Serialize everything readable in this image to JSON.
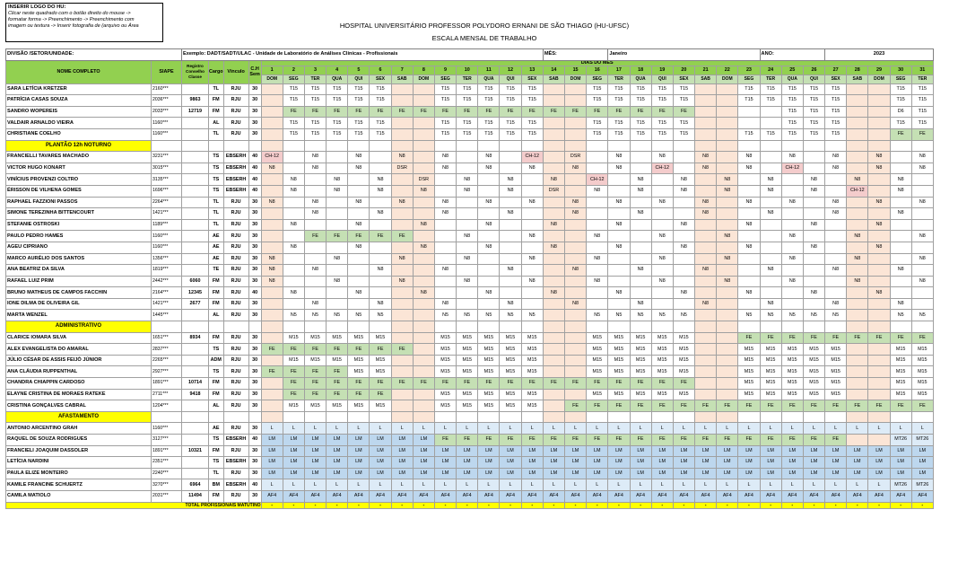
{
  "logo": {
    "title": "INSERIR LOGO DO HU:",
    "lines": [
      "Clicar neste quadrado com o botão direito do mouse ->",
      "formatar forma -> Preenchimento -> Preenchimento com",
      "imagem ou textura -> Inserir fotografia de (arquivo ou Área"
    ]
  },
  "header": {
    "hospital": "HOSPITAL UNIVERSITÁRIO PROFESSOR POLYDORO ERNANI DE SÃO THIAGO (HU-UFSC)",
    "subtitle": "ESCALA MENSAL DE TRABALHO"
  },
  "info": {
    "div_label": "DIVISÃO /SETOR/UNIDADE:",
    "exemplo": "Exemplo: DADT/SADT/ULAC - Unidade de Laboratório de Análises Clínicas - Profissionais",
    "mes_label": "MÊS:",
    "mes": "Janeiro",
    "ano_label": "ANO:",
    "ano": "2023"
  },
  "columns": {
    "nome": "NOME COMPLETO",
    "siape": "SIAPE",
    "registro": "Registro Conselho Classe",
    "cargo": "Cargo",
    "vinculo": "Vínculo",
    "ch": "C.H Sem",
    "dias_title": "DIAS DO MES"
  },
  "days": [
    "1",
    "2",
    "3",
    "4",
    "5",
    "6",
    "7",
    "8",
    "9",
    "10",
    "11",
    "12",
    "13",
    "14",
    "15",
    "16",
    "17",
    "18",
    "19",
    "20",
    "21",
    "22",
    "23",
    "24",
    "25",
    "26",
    "27",
    "28",
    "29",
    "30",
    "31"
  ],
  "weekdays": [
    "DOM",
    "SEG",
    "TER",
    "QUA",
    "QUI",
    "SEX",
    "SAB",
    "DOM",
    "SEG",
    "TER",
    "QUA",
    "QUI",
    "SEX",
    "SAB",
    "DOM",
    "SEG",
    "TER",
    "QUA",
    "QUI",
    "SEX",
    "SAB",
    "DOM",
    "SEG",
    "TER",
    "QUA",
    "QUI",
    "SEX",
    "SAB",
    "DOM",
    "SEG",
    "TER"
  ],
  "weekend_days": [
    0,
    6,
    7,
    13,
    14,
    20,
    21,
    27,
    28
  ],
  "rows": [
    {
      "nome": "SARA LETÍCIA KRETZER",
      "siape": "2160***",
      "reg": "",
      "cargo": "TL",
      "vinc": "RJU",
      "ch": "30",
      "s": {
        "2": "T15",
        "3": "T15",
        "4": "T15",
        "5": "T15",
        "6": "T15",
        "9": "T15",
        "10": "T15",
        "11": "T15",
        "12": "T15",
        "13": "T15",
        "16": "T15",
        "17": "T15",
        "18": "T15",
        "19": "T15",
        "20": "T15",
        "23": "T15",
        "24": "T15",
        "25": "T15",
        "26": "T15",
        "27": "T15",
        "30": "T15",
        "31": "T15"
      }
    },
    {
      "nome": "PATRÍCIA CASAS SOUZA",
      "siape": "2036***",
      "reg": "9863",
      "cargo": "FM",
      "vinc": "RJU",
      "ch": "30",
      "s": {
        "2": "T15",
        "3": "T15",
        "4": "T15",
        "5": "T15",
        "6": "T15",
        "9": "T15",
        "10": "T15",
        "11": "T15",
        "12": "T15",
        "13": "T15",
        "16": "T15",
        "17": "T15",
        "18": "T15",
        "19": "T15",
        "20": "T15",
        "23": "T15",
        "24": "T15",
        "25": "T15",
        "26": "T15",
        "27": "T15",
        "30": "T15",
        "31": "T15"
      }
    },
    {
      "nome": "SANDRO WOPEREIS",
      "siape": "2033***",
      "reg": "12719",
      "cargo": "FM",
      "vinc": "RJU",
      "ch": "30",
      "s": {
        "2": "FE",
        "3": "FE",
        "4": "FE",
        "5": "FE",
        "6": "FE",
        "7": "FE",
        "8": "FE",
        "9": "FE",
        "10": "FE",
        "11": "FE",
        "12": "FE",
        "13": "FE",
        "14": "FE",
        "15": "FE",
        "16": "FE",
        "17": "FE",
        "18": "FE",
        "19": "FE",
        "20": "FE",
        "25": "T15",
        "26": "T15",
        "27": "T15",
        "30": "D6",
        "31": "T15"
      }
    },
    {
      "nome": "VALDAIR ARNALDO VIEIRA",
      "siape": "1160***",
      "reg": "",
      "cargo": "AL",
      "vinc": "RJU",
      "ch": "30",
      "s": {
        "2": "T15",
        "3": "T15",
        "4": "T15",
        "5": "T15",
        "6": "T15",
        "9": "T15",
        "10": "T15",
        "11": "T15",
        "12": "T15",
        "13": "T15",
        "16": "T15",
        "17": "T15",
        "18": "T15",
        "19": "T15",
        "20": "T15",
        "25": "T15",
        "26": "T15",
        "27": "T15",
        "30": "T15",
        "31": "T15"
      }
    },
    {
      "nome": "CHRISTIANE COELHO",
      "siape": "1160***",
      "reg": "",
      "cargo": "TL",
      "vinc": "RJU",
      "ch": "30",
      "s": {
        "2": "T15",
        "3": "T15",
        "4": "T15",
        "5": "T15",
        "6": "T15",
        "9": "T15",
        "10": "T15",
        "11": "T15",
        "12": "T15",
        "13": "T15",
        "16": "T15",
        "17": "T15",
        "18": "T15",
        "19": "T15",
        "20": "T15",
        "23": "T15",
        "24": "T15",
        "25": "T15",
        "26": "T15",
        "27": "T15",
        "30": "FE",
        "31": "FE"
      }
    },
    {
      "section": "PLANTÃO 12h NOTURNO"
    },
    {
      "nome": "FRANCIELLI TAVARES MACHADO",
      "siape": "3231***",
      "reg": "",
      "cargo": "TS",
      "vinc": "EBSERH",
      "ch": "40",
      "s": {
        "1": "CH-12",
        "3": "N8",
        "5": "N8",
        "7": "N8",
        "9": "N8",
        "11": "N8",
        "13": "CH-12",
        "15": "DSR",
        "17": "N8",
        "19": "N8",
        "21": "N8",
        "23": "N8",
        "25": "N8",
        "27": "N8",
        "29": "N8",
        "31": "N8"
      }
    },
    {
      "nome": "VICTOR HUGO KONART",
      "siape": "3015***",
      "reg": "",
      "cargo": "TS",
      "vinc": "EBSERH",
      "ch": "40",
      "s": {
        "1": "N8",
        "3": "N8",
        "5": "N8",
        "7": "DSR",
        "9": "N8",
        "11": "N8",
        "13": "N8",
        "15": "N8",
        "17": "N8",
        "19": "CH-12",
        "21": "N8",
        "23": "N8",
        "25": "CH-12",
        "27": "N8",
        "29": "N8",
        "31": "N8"
      }
    },
    {
      "nome": "VINÍCIUS PROVENZI COLTRO",
      "siape": "3135***",
      "reg": "",
      "cargo": "TS",
      "vinc": "EBSERH",
      "ch": "40",
      "s": {
        "2": "N8",
        "4": "N8",
        "6": "N8",
        "8": "DSR",
        "10": "N8",
        "12": "N8",
        "14": "N8",
        "16": "CH-12",
        "18": "N8",
        "20": "N8",
        "22": "N8",
        "24": "N8",
        "26": "N8",
        "28": "N8",
        "30": "N8"
      }
    },
    {
      "nome": "ÉRISSON DE VILHENA GOMES",
      "siape": "1696***",
      "reg": "",
      "cargo": "TS",
      "vinc": "EBSERH",
      "ch": "40",
      "s": {
        "2": "N8",
        "4": "N8",
        "6": "N8",
        "8": "N8",
        "10": "N8",
        "12": "N8",
        "14": "DSR",
        "16": "N8",
        "18": "N8",
        "20": "N8",
        "22": "N8",
        "24": "N8",
        "26": "N8",
        "28": "CH-12",
        "30": "N8"
      }
    },
    {
      "nome": "RAPHAEL FAZZIONI PASSOS",
      "siape": "2264***",
      "reg": "",
      "cargo": "TL",
      "vinc": "RJU",
      "ch": "30",
      "s": {
        "1": "N8",
        "3": "N8",
        "5": "N8",
        "7": "N8",
        "9": "N8",
        "11": "N8",
        "13": "N8",
        "15": "N8",
        "17": "N8",
        "19": "N8",
        "21": "N8",
        "23": "N8",
        "25": "N8",
        "27": "N8",
        "29": "N8",
        "31": "N8"
      }
    },
    {
      "nome": "SIMONE TEREZINHA BITTENCOURT",
      "siape": "1421***",
      "reg": "",
      "cargo": "TL",
      "vinc": "RJU",
      "ch": "30",
      "s": {
        "3": "N8",
        "6": "N8",
        "9": "N8",
        "12": "N8",
        "15": "N8",
        "18": "N8",
        "21": "N8",
        "24": "N8",
        "27": "N8",
        "30": "N8"
      }
    },
    {
      "nome": "STEFANIE OSTROSKI",
      "siape": "1189***",
      "reg": "",
      "cargo": "TL",
      "vinc": "RJU",
      "ch": "30",
      "s": {
        "2": "N8",
        "5": "N8",
        "8": "N8",
        "11": "N8",
        "14": "N8",
        "17": "N8",
        "20": "N8",
        "23": "N8",
        "26": "N8",
        "29": "N8"
      }
    },
    {
      "nome": "PAULO PEDRO HAMES",
      "siape": "1160***",
      "reg": "",
      "cargo": "AE",
      "vinc": "RJU",
      "ch": "30",
      "s": {
        "3": "FE",
        "4": "FE",
        "5": "FE",
        "6": "FE",
        "7": "FE",
        "10": "N8",
        "13": "N8",
        "16": "N8",
        "19": "N8",
        "22": "N8",
        "25": "N8",
        "28": "N8",
        "31": "N8"
      }
    },
    {
      "nome": "AGEU CIPRIANO",
      "siape": "1160***",
      "reg": "",
      "cargo": "AE",
      "vinc": "RJU",
      "ch": "30",
      "s": {
        "2": "N8",
        "5": "N8",
        "8": "N8",
        "11": "N8",
        "14": "N8",
        "17": "N8",
        "20": "N8",
        "23": "N8",
        "26": "N8",
        "29": "N8"
      }
    },
    {
      "nome": "MARCO AURÉLIO DOS SANTOS",
      "siape": "1356***",
      "reg": "",
      "cargo": "AE",
      "vinc": "RJU",
      "ch": "30",
      "s": {
        "1": "N8",
        "4": "N8",
        "7": "N8",
        "10": "N8",
        "13": "N8",
        "16": "N8",
        "19": "N8",
        "22": "N8",
        "25": "N8",
        "28": "N8",
        "31": "N8"
      }
    },
    {
      "nome": "ANA BEATRIZ DA SILVA",
      "siape": "1819***",
      "reg": "",
      "cargo": "TE",
      "vinc": "RJU",
      "ch": "30",
      "s": {
        "1": "N8",
        "3": "N8",
        "6": "N8",
        "9": "N8",
        "12": "N8",
        "15": "N8",
        "18": "N8",
        "21": "N8",
        "24": "N8",
        "27": "N8",
        "30": "N8"
      }
    },
    {
      "nome": "RAFAEL LUIZ PRIM",
      "siape": "2442***",
      "reg": "6060",
      "cargo": "FM",
      "vinc": "RJU",
      "ch": "30",
      "s": {
        "1": "N8",
        "4": "N8",
        "7": "N8",
        "10": "N8",
        "13": "N8",
        "16": "N8",
        "19": "N8",
        "22": "N8",
        "25": "N8",
        "28": "N8",
        "31": "N8"
      }
    },
    {
      "nome": "BRUNO MATHEUS DE CAMPOS FACCHIN",
      "siape": "2164***",
      "reg": "12345",
      "cargo": "FM",
      "vinc": "RJU",
      "ch": "40",
      "s": {
        "2": "N8",
        "5": "N8",
        "8": "N8",
        "11": "N8",
        "14": "N8",
        "17": "N8",
        "20": "N8",
        "23": "N8",
        "26": "N8",
        "29": "N8"
      }
    },
    {
      "nome": "IONE DILMA DE OLIVEIRA GIL",
      "siape": "1421***",
      "reg": "2677",
      "cargo": "FM",
      "vinc": "RJU",
      "ch": "30",
      "s": {
        "3": "N8",
        "6": "N8",
        "9": "N8",
        "12": "N8",
        "15": "N8",
        "18": "N8",
        "21": "N8",
        "24": "N8",
        "27": "N8",
        "30": "N8"
      }
    },
    {
      "nome": "MARTA WENZEL",
      "siape": "1445***",
      "reg": "",
      "cargo": "AL",
      "vinc": "RJU",
      "ch": "30",
      "s": {
        "2": "N5",
        "3": "N5",
        "4": "N5",
        "5": "N5",
        "6": "N5",
        "9": "N5",
        "10": "N5",
        "11": "N5",
        "12": "N5",
        "13": "N5",
        "16": "N5",
        "17": "N5",
        "18": "N5",
        "19": "N5",
        "20": "N5",
        "23": "N5",
        "24": "N5",
        "25": "N5",
        "26": "N5",
        "27": "N5",
        "30": "N5",
        "31": "N5"
      }
    },
    {
      "section": "ADMINISTRATIVO"
    },
    {
      "nome": "CLARICE IOMARA SILVA",
      "siape": "1651***",
      "reg": "8934",
      "cargo": "FM",
      "vinc": "RJU",
      "ch": "30",
      "s": {
        "2": "M15",
        "3": "M15",
        "4": "M15",
        "5": "M15",
        "6": "M15",
        "9": "M15",
        "10": "M15",
        "11": "M15",
        "12": "M15",
        "13": "M15",
        "16": "M15",
        "17": "M15",
        "18": "M15",
        "19": "M15",
        "20": "M15",
        "23": "FE",
        "24": "FE",
        "25": "FE",
        "26": "FE",
        "27": "FE",
        "28": "FE",
        "29": "FE",
        "30": "FE",
        "31": "FE"
      }
    },
    {
      "nome": "ALEX EVANGELISTA DO AMARAL",
      "siape": "2837***",
      "reg": "",
      "cargo": "TS",
      "vinc": "RJU",
      "ch": "30",
      "s": {
        "1": "FE",
        "2": "FE",
        "3": "FE",
        "4": "FE",
        "5": "FE",
        "6": "FE",
        "7": "FE",
        "9": "M15",
        "10": "M15",
        "11": "M15",
        "12": "M15",
        "13": "M15",
        "16": "M15",
        "17": "M15",
        "18": "M15",
        "19": "M15",
        "20": "M15",
        "23": "M15",
        "24": "M15",
        "25": "M15",
        "26": "M15",
        "27": "M15",
        "30": "M15",
        "31": "M15"
      }
    },
    {
      "nome": "JÚLIO CÉSAR DE ASSIS FEIJÓ JÚNIOR",
      "siape": "2265***",
      "reg": "",
      "cargo": "ADM",
      "vinc": "RJU",
      "ch": "30",
      "s": {
        "2": "M15",
        "3": "M15",
        "4": "M15",
        "5": "M15",
        "6": "M15",
        "9": "M15",
        "10": "M15",
        "11": "M15",
        "12": "M15",
        "13": "M15",
        "16": "M15",
        "17": "M15",
        "18": "M15",
        "19": "M15",
        "20": "M15",
        "23": "M15",
        "24": "M15",
        "25": "M15",
        "26": "M15",
        "27": "M15",
        "30": "M15",
        "31": "M15"
      }
    },
    {
      "nome": "ANA CLÁUDIA RUPPENTHAL",
      "siape": "2927***",
      "reg": "",
      "cargo": "TS",
      "vinc": "RJU",
      "ch": "30",
      "s": {
        "1": "FE",
        "2": "FE",
        "3": "FE",
        "4": "FE",
        "5": "M15",
        "6": "M15",
        "9": "M15",
        "10": "M15",
        "11": "M15",
        "12": "M15",
        "13": "M15",
        "16": "M15",
        "17": "M15",
        "18": "M15",
        "19": "M15",
        "20": "M15",
        "23": "M15",
        "24": "M15",
        "25": "M15",
        "26": "M15",
        "27": "M15",
        "30": "M15",
        "31": "M15"
      }
    },
    {
      "nome": "CHANDRA CHIAPPIN CARDOSO",
      "siape": "1891***",
      "reg": "10714",
      "cargo": "FM",
      "vinc": "RJU",
      "ch": "30",
      "s": {
        "2": "FE",
        "3": "FE",
        "4": "FE",
        "5": "FE",
        "6": "FE",
        "7": "FE",
        "8": "FE",
        "9": "FE",
        "10": "FE",
        "11": "FE",
        "12": "FE",
        "13": "FE",
        "14": "FE",
        "15": "FE",
        "16": "FE",
        "17": "FE",
        "18": "FE",
        "19": "FE",
        "20": "FE",
        "23": "M15",
        "24": "M15",
        "25": "M15",
        "26": "M15",
        "27": "M15",
        "30": "M15",
        "31": "M15"
      }
    },
    {
      "nome": "ELAYNE CRISTINA DE MORAES RATEKE",
      "siape": "2711***",
      "reg": "9418",
      "cargo": "FM",
      "vinc": "RJU",
      "ch": "30",
      "s": {
        "2": "FE",
        "3": "FE",
        "4": "FE",
        "5": "FE",
        "6": "FE",
        "9": "M15",
        "10": "M15",
        "11": "M15",
        "12": "M15",
        "13": "M15",
        "16": "M15",
        "17": "M15",
        "18": "M15",
        "19": "M15",
        "20": "M15",
        "23": "M15",
        "24": "M15",
        "25": "M15",
        "26": "M15",
        "27": "M15",
        "30": "M15",
        "31": "M15"
      }
    },
    {
      "nome": "CRISTINA GONÇALVES CABRAL",
      "siape": "1204***",
      "reg": "",
      "cargo": "AL",
      "vinc": "RJU",
      "ch": "30",
      "s": {
        "2": "M15",
        "3": "M15",
        "4": "M15",
        "5": "M15",
        "6": "M15",
        "9": "M15",
        "10": "M15",
        "11": "M15",
        "12": "M15",
        "13": "M15",
        "15": "FE",
        "16": "FE",
        "17": "FE",
        "18": "FE",
        "19": "FE",
        "20": "FE",
        "21": "FE",
        "22": "FE",
        "23": "FE",
        "24": "FE",
        "25": "FE",
        "26": "FE",
        "27": "FE",
        "28": "FE",
        "29": "FE",
        "30": "FE",
        "31": "FE"
      }
    },
    {
      "section": "AFASTAMENTO"
    },
    {
      "nome": "ANTONIO ARCENTINO GRAH",
      "siape": "1160***",
      "reg": "",
      "cargo": "AE",
      "vinc": "RJU",
      "ch": "30",
      "fill": "L"
    },
    {
      "nome": "RAQUEL DE SOUZA RODRIGUES",
      "siape": "3127***",
      "reg": "",
      "cargo": "TS",
      "vinc": "EBSERH",
      "ch": "40",
      "s": {
        "1": "LM",
        "2": "LM",
        "3": "LM",
        "4": "LM",
        "5": "LM",
        "6": "LM",
        "7": "LM",
        "8": "LM",
        "9": "FE",
        "10": "FE",
        "11": "FE",
        "12": "FE",
        "13": "FE",
        "14": "FE",
        "15": "FE",
        "16": "FE",
        "17": "FE",
        "18": "FE",
        "19": "FE",
        "20": "FE",
        "21": "FE",
        "22": "FE",
        "23": "FE",
        "24": "FE",
        "25": "FE",
        "26": "FE",
        "27": "FE",
        "30": "MT26",
        "31": "MT26"
      }
    },
    {
      "nome": "FRANCIELI JOAQUIM DASSOLER",
      "siape": "1891***",
      "reg": "10321",
      "cargo": "FM",
      "vinc": "RJU",
      "ch": "30",
      "fill": "LM"
    },
    {
      "nome": "LETÍCIA NARDINI",
      "siape": "2351***",
      "reg": "",
      "cargo": "TS",
      "vinc": "EBSERH",
      "ch": "30",
      "fill": "LM"
    },
    {
      "nome": "PAULA ELIZE MONTEIRO",
      "siape": "2240***",
      "reg": "",
      "cargo": "TL",
      "vinc": "RJU",
      "ch": "30",
      "fill": "LM"
    },
    {
      "nome": "KAMILE FRANCINE SCHUERTZ",
      "siape": "3270***",
      "reg": "6964",
      "cargo": "BM",
      "vinc": "EBSERH",
      "ch": "40",
      "fill": "L",
      "s": {
        "30": "MT26",
        "31": "MT26"
      }
    },
    {
      "nome": "CAMILA MATIOLO",
      "siape": "2031***",
      "reg": "11494",
      "cargo": "FM",
      "vinc": "RJU",
      "ch": "30",
      "fill": "AF4"
    }
  ],
  "total": {
    "label": "TOTAL PROFISSIONAIS MATUTINO",
    "dash": "-"
  }
}
